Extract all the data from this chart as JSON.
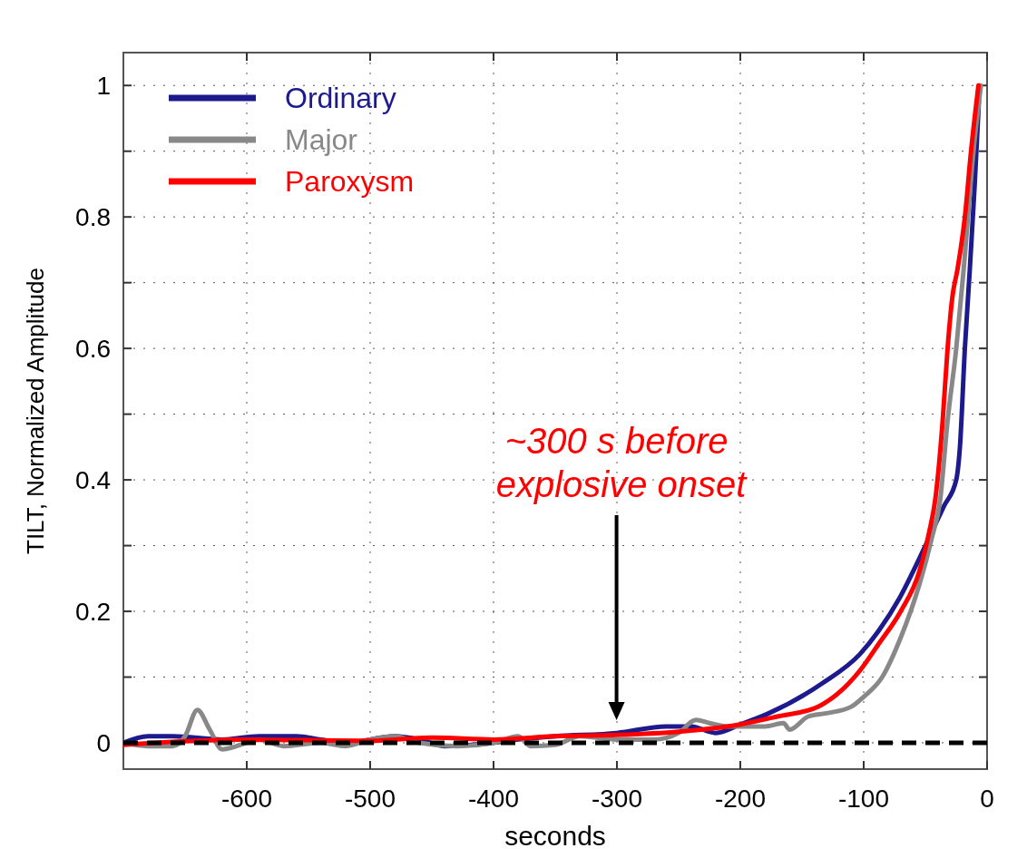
{
  "chart_data": {
    "type": "line",
    "xlabel": "seconds",
    "ylabel": "TILT, Normalized Amplitude",
    "xlim": [
      -700,
      0
    ],
    "ylim": [
      -0.04,
      1.05
    ],
    "xticks": [
      -600,
      -500,
      -400,
      -300,
      -200,
      -100,
      0
    ],
    "yticks": [
      0,
      {
        "value": 0.1,
        "label": null
      },
      0.2,
      {
        "value": 0.3,
        "label": null
      },
      0.4,
      {
        "value": 0.5,
        "label": null
      },
      0.6,
      {
        "value": 0.7,
        "label": null
      },
      0.8,
      {
        "value": 0.9,
        "label": null
      },
      1
    ],
    "grid": true,
    "legend": "top left",
    "line_style": "solid",
    "marker": "none",
    "ref_lines": [
      {
        "axis": "y",
        "value": 0,
        "color": "#000000",
        "line_style": "dashed"
      }
    ],
    "annotations": [
      "~300 s before\nexplosive onset"
    ],
    "series": [
      {
        "name": "Ordinary",
        "color": "#1c1a8c",
        "x": [
          -700,
          -680,
          -660,
          -620,
          -590,
          -560,
          -540,
          -520,
          -480,
          -460,
          -440,
          -400,
          -380,
          -350,
          -300,
          -260,
          -240,
          -220,
          -200,
          -178,
          -134,
          -103,
          -88,
          -71,
          -55,
          -45,
          -35,
          -25,
          -22,
          -18,
          -14,
          -10,
          -6
        ],
        "values": [
          0,
          0.01,
          0.01,
          0.005,
          0.01,
          0.01,
          0.005,
          0,
          0.01,
          0.005,
          -0.005,
          0,
          0.005,
          0.01,
          0.015,
          0.025,
          0.025,
          0.015,
          0.028,
          0.044,
          0.09,
          0.135,
          0.17,
          0.22,
          0.28,
          0.32,
          0.36,
          0.4,
          0.45,
          0.6,
          0.72,
          0.85,
          1
        ]
      },
      {
        "name": "Major",
        "color": "#888888",
        "x": [
          -700,
          -680,
          -660,
          -650,
          -640,
          -630,
          -620,
          -600,
          -590,
          -570,
          -540,
          -520,
          -500,
          -480,
          -460,
          -430,
          -400,
          -380,
          -370,
          -350,
          -330,
          -300,
          -270,
          -250,
          -236,
          -225,
          -210,
          -190,
          -180,
          -165,
          -160,
          -145,
          -130,
          -110,
          -100,
          -85,
          -70,
          -55,
          -45,
          -38,
          -32,
          -25,
          -19,
          -11,
          -5
        ],
        "values": [
          0,
          -0.005,
          -0.005,
          0.01,
          0.05,
          0.02,
          -0.01,
          0,
          0.005,
          -0.005,
          0,
          -0.005,
          0.005,
          0.01,
          0,
          -0.005,
          0,
          0.01,
          -0.005,
          -0.003,
          0.01,
          0.005,
          0.005,
          0.015,
          0.035,
          0.03,
          0.025,
          0.025,
          0.025,
          0.03,
          0.02,
          0.04,
          0.045,
          0.055,
          0.07,
          0.1,
          0.16,
          0.24,
          0.31,
          0.37,
          0.49,
          0.6,
          0.72,
          0.9,
          1
        ]
      },
      {
        "name": "Paroxysm",
        "color": "#ff0000",
        "x": [
          -700,
          -600,
          -500,
          -450,
          -400,
          -350,
          -300,
          -250,
          -200,
          -170,
          -137,
          -103,
          -88,
          -70,
          -55,
          -47,
          -42,
          -36,
          -32,
          -28,
          -24,
          -18,
          -13,
          -7
        ],
        "values": [
          -0.003,
          0.005,
          0.003,
          0.008,
          0.005,
          0.01,
          0.012,
          0.017,
          0.028,
          0.04,
          0.055,
          0.11,
          0.15,
          0.2,
          0.26,
          0.32,
          0.37,
          0.49,
          0.6,
          0.68,
          0.72,
          0.8,
          0.9,
          1
        ]
      }
    ]
  }
}
